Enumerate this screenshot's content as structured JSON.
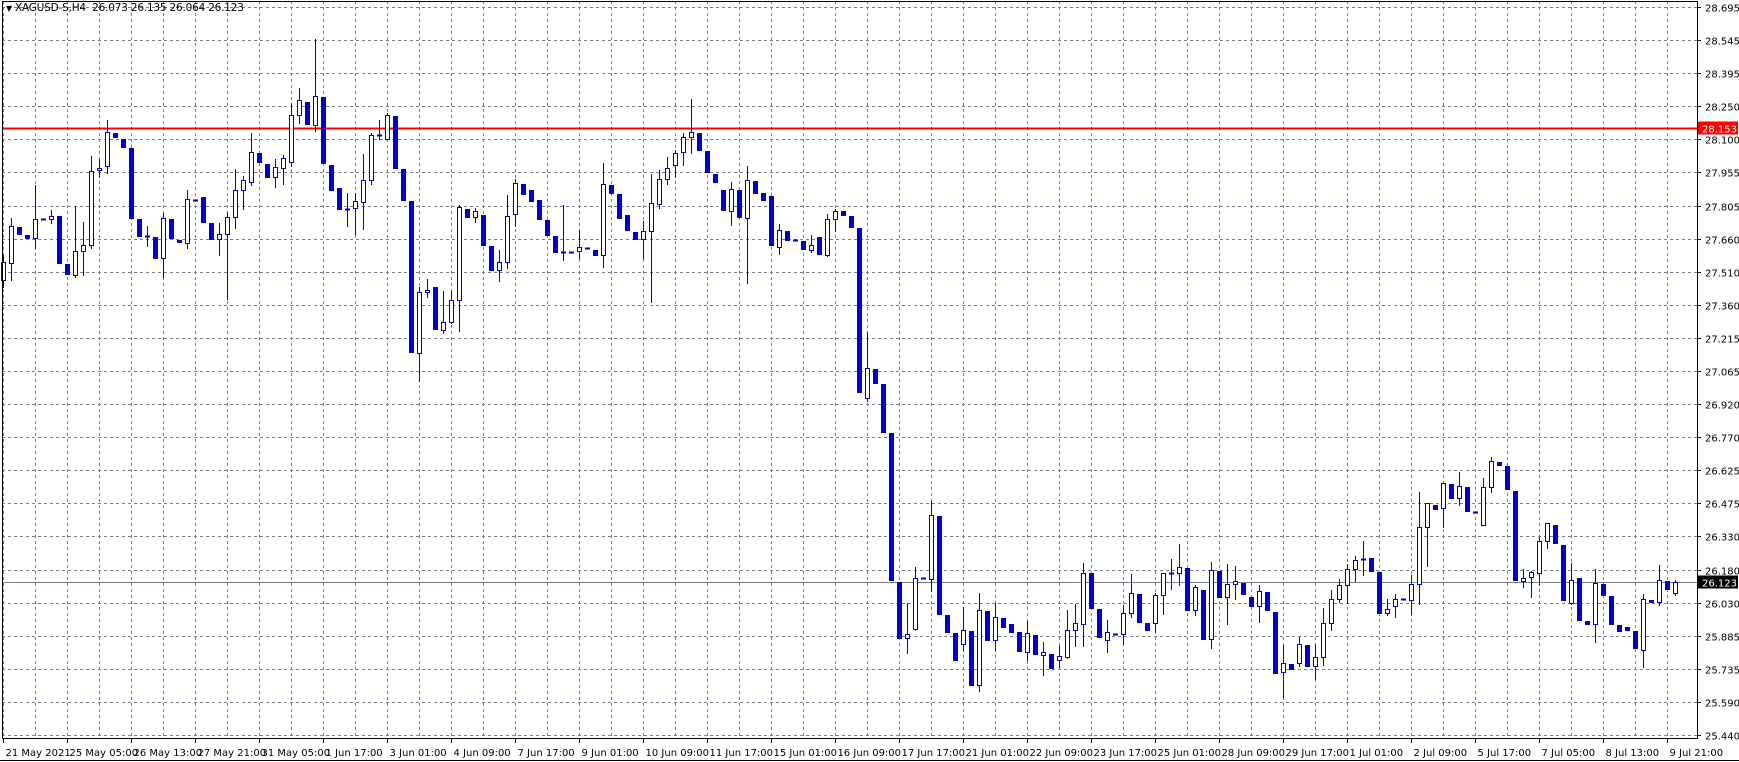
{
  "header": {
    "symbol": "XAGUSD-S,H4",
    "ohlc_text": "26.073 26.135 26.064 26.123",
    "menu_icon": "triangle-down-icon"
  },
  "colors": {
    "candle": "#0000CD",
    "grid": "#708090",
    "horizontal_line": "#FF0000",
    "bid_line": "#708090",
    "bid_label_bg": "#000000"
  },
  "chart_data": {
    "type": "candlestick",
    "symbol": "XAGUSD-S",
    "timeframe": "H4",
    "grid": true,
    "ylim": [
      25.44,
      28.695
    ],
    "y_ticks": [
      "28.695",
      "28.545",
      "28.395",
      "28.250",
      "28.100",
      "27.955",
      "27.805",
      "27.660",
      "27.510",
      "27.360",
      "27.215",
      "27.065",
      "26.920",
      "26.770",
      "26.625",
      "26.475",
      "26.330",
      "26.180",
      "26.030",
      "25.885",
      "25.735",
      "25.590",
      "25.440"
    ],
    "x_ticks": [
      "21 May 2021",
      "25 May 05:00",
      "26 May 13:00",
      "27 May 21:00",
      "31 May 05:00",
      "1 Jun 17:00",
      "3 Jun 01:00",
      "4 Jun 09:00",
      "7 Jun 17:00",
      "9 Jun 01:00",
      "10 Jun 09:00",
      "11 Jun 17:00",
      "15 Jun 01:00",
      "16 Jun 09:00",
      "17 Jun 17:00",
      "21 Jun 01:00",
      "22 Jun 09:00",
      "23 Jun 17:00",
      "25 Jun 01:00",
      "28 Jun 09:00",
      "29 Jun 17:00",
      "1 Jul 01:00",
      "2 Jul 09:00",
      "5 Jul 17:00",
      "7 Jul 05:00",
      "8 Jul 13:00",
      "9 Jul 21:00"
    ],
    "horizontal_line": {
      "price": 28.153,
      "label": "28.153"
    },
    "bid_line": {
      "price": 26.123,
      "label": "26.123"
    },
    "candle_format": [
      "open",
      "high",
      "low",
      "close"
    ],
    "candles": [
      [
        27.474,
        27.586,
        27.443,
        27.554
      ],
      [
        27.55,
        27.752,
        27.474,
        27.716
      ],
      [
        27.711,
        27.711,
        27.68,
        27.68
      ],
      [
        27.676,
        27.676,
        27.662,
        27.662
      ],
      [
        27.662,
        27.899,
        27.617,
        27.747
      ],
      [
        27.747,
        27.747,
        27.747,
        27.747
      ],
      [
        27.747,
        27.787,
        27.729,
        27.761
      ],
      [
        27.761,
        27.761,
        27.55,
        27.55
      ],
      [
        27.546,
        27.546,
        27.501,
        27.501
      ],
      [
        27.497,
        27.805,
        27.488,
        27.604
      ],
      [
        27.604,
        27.734,
        27.497,
        27.631
      ],
      [
        27.631,
        28.029,
        27.617,
        27.962
      ],
      [
        27.966,
        28.015,
        27.935,
        27.975
      ],
      [
        27.984,
        28.19,
        27.953,
        28.136
      ],
      [
        28.131,
        28.131,
        28.114,
        28.114
      ],
      [
        28.105,
        28.105,
        28.069,
        28.069
      ],
      [
        28.064,
        28.064,
        27.752,
        27.752
      ],
      [
        27.747,
        27.747,
        27.671,
        27.671
      ],
      [
        27.671,
        27.716,
        27.626,
        27.671
      ],
      [
        27.667,
        27.667,
        27.573,
        27.573
      ],
      [
        27.573,
        27.774,
        27.488,
        27.752
      ],
      [
        27.747,
        27.747,
        27.662,
        27.662
      ],
      [
        27.653,
        27.653,
        27.644,
        27.644
      ],
      [
        27.64,
        27.877,
        27.617,
        27.837
      ],
      [
        27.832,
        27.832,
        27.832,
        27.832
      ],
      [
        27.845,
        27.845,
        27.734,
        27.734
      ],
      [
        27.729,
        27.729,
        27.658,
        27.658
      ],
      [
        27.658,
        27.729,
        27.586,
        27.68
      ],
      [
        27.68,
        27.778,
        27.389,
        27.756
      ],
      [
        27.756,
        27.971,
        27.707,
        27.877
      ],
      [
        27.877,
        27.939,
        27.792,
        27.921
      ],
      [
        27.912,
        28.131,
        27.899,
        28.047
      ],
      [
        28.042,
        28.042,
        28.002,
        28.002
      ],
      [
        27.993,
        27.993,
        27.935,
        27.935
      ],
      [
        27.935,
        28.015,
        27.89,
        27.98
      ],
      [
        27.975,
        28.033,
        27.904,
        28.02
      ],
      [
        28.002,
        28.266,
        27.984,
        28.212
      ],
      [
        28.212,
        28.333,
        28.176,
        28.279
      ],
      [
        28.27,
        28.27,
        28.172,
        28.172
      ],
      [
        28.167,
        28.552,
        28.14,
        28.297
      ],
      [
        28.292,
        28.292,
        27.997,
        27.997
      ],
      [
        27.989,
        27.989,
        27.877,
        27.877
      ],
      [
        27.886,
        27.886,
        27.792,
        27.792
      ],
      [
        27.792,
        27.863,
        27.716,
        27.792
      ],
      [
        27.796,
        27.863,
        27.68,
        27.828
      ],
      [
        27.823,
        28.038,
        27.702,
        27.921
      ],
      [
        27.921,
        28.131,
        27.904,
        28.123
      ],
      [
        28.123,
        28.19,
        28.105,
        28.123
      ],
      [
        28.105,
        28.221,
        28.105,
        28.212
      ],
      [
        28.207,
        28.207,
        27.975,
        27.975
      ],
      [
        27.971,
        27.971,
        27.832,
        27.832
      ],
      [
        27.828,
        27.828,
        27.153,
        27.153
      ],
      [
        27.148,
        27.443,
        27.023,
        27.421
      ],
      [
        27.421,
        27.479,
        27.398,
        27.43
      ],
      [
        27.443,
        27.443,
        27.255,
        27.255
      ],
      [
        27.251,
        27.425,
        27.238,
        27.287
      ],
      [
        27.287,
        27.425,
        27.282,
        27.385
      ],
      [
        27.385,
        27.81,
        27.246,
        27.801
      ],
      [
        27.792,
        27.792,
        27.756,
        27.756
      ],
      [
        27.756,
        27.796,
        27.734,
        27.783
      ],
      [
        27.765,
        27.765,
        27.631,
        27.631
      ],
      [
        27.626,
        27.626,
        27.519,
        27.519
      ],
      [
        27.519,
        27.609,
        27.47,
        27.555
      ],
      [
        27.555,
        27.854,
        27.528,
        27.761
      ],
      [
        27.77,
        27.926,
        27.716,
        27.908
      ],
      [
        27.904,
        27.904,
        27.859,
        27.859
      ],
      [
        27.877,
        27.877,
        27.828,
        27.828
      ],
      [
        27.832,
        27.832,
        27.747,
        27.747
      ],
      [
        27.743,
        27.743,
        27.676,
        27.676
      ],
      [
        27.671,
        27.671,
        27.6,
        27.6
      ],
      [
        27.6,
        27.81,
        27.564,
        27.6
      ],
      [
        27.6,
        27.6,
        27.6,
        27.6
      ],
      [
        27.604,
        27.698,
        27.573,
        27.622
      ],
      [
        27.617,
        27.617,
        27.617,
        27.617
      ],
      [
        27.609,
        27.609,
        27.586,
        27.586
      ],
      [
        27.586,
        27.997,
        27.533,
        27.904
      ],
      [
        27.899,
        27.899,
        27.863,
        27.863
      ],
      [
        27.859,
        27.859,
        27.752,
        27.752
      ],
      [
        27.765,
        27.765,
        27.698,
        27.698
      ],
      [
        27.689,
        27.689,
        27.658,
        27.658
      ],
      [
        27.658,
        27.738,
        27.573,
        27.693
      ],
      [
        27.693,
        27.948,
        27.376,
        27.819
      ],
      [
        27.814,
        27.966,
        27.796,
        27.926
      ],
      [
        27.926,
        28.024,
        27.904,
        27.975
      ],
      [
        27.989,
        28.056,
        27.935,
        28.042
      ],
      [
        28.047,
        28.131,
        27.989,
        28.114
      ],
      [
        28.114,
        28.283,
        28.042,
        28.136
      ],
      [
        28.131,
        28.131,
        28.056,
        28.056
      ],
      [
        28.051,
        28.051,
        27.957,
        27.957
      ],
      [
        27.948,
        27.948,
        27.912,
        27.912
      ],
      [
        27.877,
        27.877,
        27.787,
        27.787
      ],
      [
        27.783,
        27.912,
        27.72,
        27.881
      ],
      [
        27.877,
        27.877,
        27.756,
        27.756
      ],
      [
        27.752,
        27.984,
        27.461,
        27.921
      ],
      [
        27.917,
        27.917,
        27.863,
        27.863
      ],
      [
        27.863,
        27.863,
        27.832,
        27.832
      ],
      [
        27.85,
        27.85,
        27.631,
        27.631
      ],
      [
        27.622,
        27.725,
        27.591,
        27.698
      ],
      [
        27.693,
        27.693,
        27.653,
        27.653
      ],
      [
        27.653,
        27.653,
        27.653,
        27.653
      ],
      [
        27.649,
        27.649,
        27.613,
        27.613
      ],
      [
        27.609,
        27.676,
        27.6,
        27.631
      ],
      [
        27.667,
        27.667,
        27.591,
        27.591
      ],
      [
        27.586,
        27.77,
        27.582,
        27.747
      ],
      [
        27.747,
        27.792,
        27.693,
        27.783
      ],
      [
        27.783,
        27.783,
        27.765,
        27.765
      ],
      [
        27.761,
        27.761,
        27.711,
        27.711
      ],
      [
        27.707,
        27.707,
        26.974,
        26.974
      ],
      [
        26.947,
        27.242,
        26.934,
        27.081
      ],
      [
        27.077,
        27.077,
        27.014,
        27.014
      ],
      [
        27.01,
        27.01,
        26.795,
        26.795
      ],
      [
        26.79,
        26.79,
        26.133,
        26.133
      ],
      [
        26.124,
        26.124,
        25.874,
        25.874
      ],
      [
        25.874,
        26.031,
        25.807,
        25.892
      ],
      [
        25.914,
        26.192,
        25.91,
        26.142
      ],
      [
        26.142,
        26.142,
        26.142,
        26.142
      ],
      [
        26.138,
        26.487,
        26.084,
        26.424
      ],
      [
        26.42,
        26.42,
        25.981,
        25.981
      ],
      [
        25.977,
        25.977,
        25.901,
        25.901
      ],
      [
        25.897,
        25.897,
        25.776,
        25.776
      ],
      [
        25.847,
        26.013,
        25.82,
        25.91
      ],
      [
        25.906,
        25.906,
        25.664,
        25.664
      ],
      [
        25.664,
        26.075,
        25.637,
        25.999
      ],
      [
        25.995,
        25.995,
        25.865,
        25.865
      ],
      [
        25.865,
        26.031,
        25.82,
        25.968
      ],
      [
        25.963,
        25.963,
        25.923,
        25.923
      ],
      [
        25.937,
        25.937,
        25.901,
        25.901
      ],
      [
        25.901,
        25.901,
        25.816,
        25.816
      ],
      [
        25.812,
        25.95,
        25.776,
        25.897
      ],
      [
        25.888,
        25.888,
        25.803,
        25.803
      ],
      [
        25.798,
        25.856,
        25.709,
        25.812
      ],
      [
        25.803,
        25.803,
        25.74,
        25.74
      ],
      [
        25.776,
        25.838,
        25.745,
        25.794
      ],
      [
        25.789,
        25.999,
        25.785,
        25.91
      ],
      [
        25.91,
        26.026,
        25.838,
        25.941
      ],
      [
        25.937,
        26.209,
        25.838,
        26.165
      ],
      [
        26.165,
        26.165,
        26.008,
        26.008
      ],
      [
        26.004,
        26.004,
        25.879,
        25.879
      ],
      [
        25.865,
        25.955,
        25.812,
        25.901
      ],
      [
        25.892,
        25.892,
        25.892,
        25.892
      ],
      [
        25.892,
        26.022,
        25.847,
        25.986
      ],
      [
        25.986,
        26.16,
        25.968,
        26.075
      ],
      [
        26.071,
        26.071,
        25.946,
        25.946
      ],
      [
        25.941,
        25.941,
        25.91,
        25.91
      ],
      [
        25.941,
        26.075,
        25.901,
        26.066
      ],
      [
        26.066,
        26.165,
        25.981,
        26.165
      ],
      [
        26.165,
        26.227,
        26.093,
        26.165
      ],
      [
        26.165,
        26.294,
        26.111,
        26.192
      ],
      [
        26.187,
        26.187,
        25.999,
        25.999
      ],
      [
        25.999,
        26.111,
        25.977,
        26.102
      ],
      [
        26.089,
        26.089,
        25.87,
        25.87
      ],
      [
        25.87,
        26.214,
        25.829,
        26.178
      ],
      [
        26.174,
        26.174,
        26.057,
        26.057
      ],
      [
        26.057,
        26.205,
        25.937,
        26.115
      ],
      [
        26.115,
        26.196,
        26.048,
        26.129
      ],
      [
        26.12,
        26.12,
        26.071,
        26.071
      ],
      [
        26.057,
        26.057,
        26.017,
        26.017
      ],
      [
        26.017,
        26.111,
        25.946,
        26.084
      ],
      [
        26.08,
        26.08,
        25.999,
        25.999
      ],
      [
        25.99,
        25.99,
        25.718,
        25.718
      ],
      [
        25.722,
        25.843,
        25.61,
        25.762
      ],
      [
        25.758,
        25.758,
        25.736,
        25.736
      ],
      [
        25.762,
        25.879,
        25.749,
        25.847
      ],
      [
        25.843,
        25.843,
        25.749,
        25.749
      ],
      [
        25.749,
        25.847,
        25.691,
        25.789
      ],
      [
        25.789,
        26.008,
        25.753,
        25.941
      ],
      [
        25.941,
        26.089,
        25.91,
        26.048
      ],
      [
        26.048,
        26.138,
        26.035,
        26.111
      ],
      [
        26.111,
        26.205,
        26.031,
        26.183
      ],
      [
        26.183,
        26.241,
        26.129,
        26.223
      ],
      [
        26.227,
        26.308,
        26.156,
        26.227
      ],
      [
        26.232,
        26.232,
        26.174,
        26.174
      ],
      [
        26.169,
        26.169,
        25.986,
        25.986
      ],
      [
        25.986,
        26.048,
        25.977,
        26.004
      ],
      [
        26.017,
        26.071,
        25.968,
        26.048
      ],
      [
        26.048,
        26.048,
        26.048,
        26.048
      ],
      [
        26.044,
        26.156,
        25.981,
        26.115
      ],
      [
        26.115,
        26.527,
        26.026,
        26.37
      ],
      [
        26.37,
        26.478,
        26.196,
        26.478
      ],
      [
        26.469,
        26.469,
        26.451,
        26.451
      ],
      [
        26.455,
        26.567,
        26.37,
        26.567
      ],
      [
        26.563,
        26.563,
        26.5,
        26.5
      ],
      [
        26.5,
        26.616,
        26.469,
        26.554
      ],
      [
        26.549,
        26.549,
        26.442,
        26.442
      ],
      [
        26.437,
        26.437,
        26.437,
        26.437
      ],
      [
        26.379,
        26.589,
        26.379,
        26.549
      ],
      [
        26.549,
        26.683,
        26.527,
        26.665
      ],
      [
        26.661,
        26.661,
        26.647,
        26.647
      ],
      [
        26.643,
        26.643,
        26.54,
        26.54
      ],
      [
        26.531,
        26.531,
        26.133,
        26.133
      ],
      [
        26.129,
        26.183,
        26.102,
        26.142
      ],
      [
        26.147,
        26.174,
        26.057,
        26.169
      ],
      [
        26.165,
        26.326,
        26.111,
        26.308
      ],
      [
        26.308,
        26.388,
        26.277,
        26.388
      ],
      [
        26.379,
        26.379,
        26.299,
        26.299
      ],
      [
        26.29,
        26.29,
        26.044,
        26.044
      ],
      [
        26.031,
        26.209,
        26.026,
        26.133
      ],
      [
        26.142,
        26.142,
        25.955,
        25.955
      ],
      [
        25.95,
        25.95,
        25.937,
        25.937
      ],
      [
        25.937,
        26.183,
        25.856,
        26.12
      ],
      [
        26.115,
        26.115,
        26.066,
        26.066
      ],
      [
        26.062,
        26.062,
        25.937,
        25.937
      ],
      [
        25.932,
        25.932,
        25.906,
        25.906
      ],
      [
        25.923,
        25.923,
        25.91,
        25.91
      ],
      [
        25.906,
        25.906,
        25.83,
        25.83
      ],
      [
        25.82,
        26.071,
        25.745,
        26.048
      ],
      [
        26.044,
        26.044,
        26.035,
        26.035
      ],
      [
        26.035,
        26.2,
        26.022,
        26.133
      ],
      [
        26.129,
        26.129,
        26.093,
        26.093
      ],
      [
        26.073,
        26.135,
        26.064,
        26.123
      ]
    ]
  }
}
